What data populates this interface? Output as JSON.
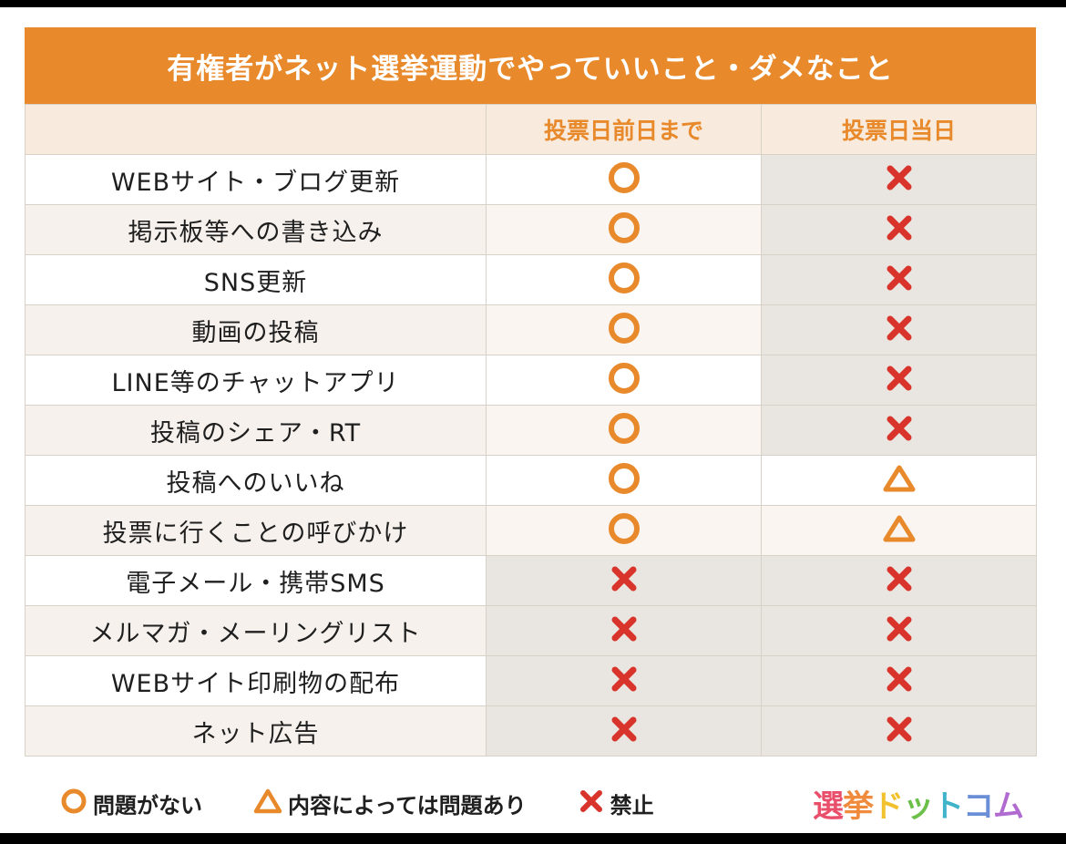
{
  "title": "有権者がネット選挙運動でやっていいこと・ダメなこと",
  "columns": {
    "before": "投票日前日まで",
    "day": "投票日当日"
  },
  "rows": [
    {
      "label": "WEBサイト・ブログ更新",
      "before": "ok",
      "day": "ng"
    },
    {
      "label": "掲示板等への書き込み",
      "before": "ok",
      "day": "ng"
    },
    {
      "label": "SNS更新",
      "before": "ok",
      "day": "ng"
    },
    {
      "label": "動画の投稿",
      "before": "ok",
      "day": "ng"
    },
    {
      "label": "LINE等のチャットアプリ",
      "before": "ok",
      "day": "ng"
    },
    {
      "label": "投稿のシェア・RT",
      "before": "ok",
      "day": "ng"
    },
    {
      "label": "投稿へのいいね",
      "before": "ok",
      "day": "warn"
    },
    {
      "label": "投票に行くことの呼びかけ",
      "before": "ok",
      "day": "warn"
    },
    {
      "label": "電子メール・携帯SMS",
      "before": "ng",
      "day": "ng"
    },
    {
      "label": "メルマガ・メーリングリスト",
      "before": "ng",
      "day": "ng"
    },
    {
      "label": "WEBサイト印刷物の配布",
      "before": "ng",
      "day": "ng"
    },
    {
      "label": "ネット広告",
      "before": "ng",
      "day": "ng"
    }
  ],
  "legend": {
    "ok": "問題がない",
    "warn": "内容によっては問題あり",
    "ng": "禁止"
  },
  "logo": [
    "選",
    "挙",
    "ド",
    "ッ",
    "ト",
    "コ",
    "ム"
  ],
  "colors": {
    "accent": "#e8892b",
    "ng": "#d9342b",
    "logo": [
      "#e94f6b",
      "#f08a3c",
      "#f2c12e",
      "#6cc04a",
      "#3fb3c9",
      "#6b8fd6",
      "#b06ad0"
    ]
  }
}
